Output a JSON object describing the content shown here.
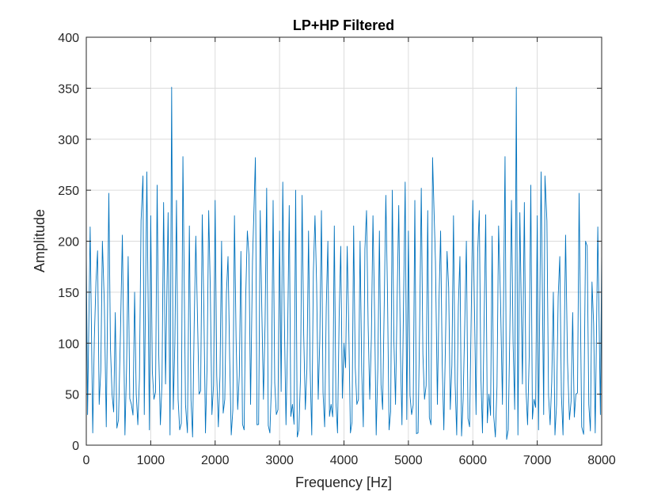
{
  "chart_data": {
    "type": "line",
    "title": "LP+HP Filtered",
    "xlabel": "Frequency [Hz]",
    "ylabel": "Amplitude",
    "xlim": [
      0,
      8000
    ],
    "ylim": [
      0,
      400
    ],
    "xticks": [
      0,
      1000,
      2000,
      3000,
      4000,
      5000,
      6000,
      7000,
      8000
    ],
    "yticks": [
      0,
      50,
      100,
      150,
      200,
      250,
      300,
      350,
      400
    ],
    "grid": true,
    "series_color": "#0072BD",
    "series": [
      {
        "style": "dense noise spectrum, mirror-symmetric about 4000 Hz",
        "x": [
          0,
          20,
          60,
          100,
          150,
          200,
          250,
          310,
          350,
          400,
          450,
          500,
          560,
          600,
          650,
          700,
          750,
          800,
          850,
          880,
          900,
          940,
          980,
          1000,
          1050,
          1100,
          1150,
          1200,
          1230,
          1270,
          1300,
          1325,
          1350,
          1400,
          1450,
          1500,
          1540,
          1600,
          1650,
          1700,
          1750,
          1800,
          1850,
          1900,
          1950,
          2000,
          2050,
          2100,
          2150,
          2200,
          2250,
          2300,
          2350,
          2400,
          2450,
          2500,
          2550,
          2580,
          2625,
          2650,
          2700,
          2750,
          2800,
          2850,
          2900,
          2950,
          3000,
          3050,
          3100,
          3150,
          3200,
          3250,
          3300,
          3350,
          3400,
          3450,
          3500,
          3550,
          3600,
          3650,
          3700,
          3750,
          3800,
          3850,
          3900,
          3950,
          4000
        ],
        "y": [
          190,
          30,
          214,
          12,
          160,
          40,
          200,
          18,
          247,
          50,
          130,
          25,
          206,
          10,
          185,
          40,
          150,
          20,
          220,
          264,
          30,
          268,
          15,
          225,
          45,
          255,
          20,
          238,
          60,
          228,
          10,
          351,
          35,
          240,
          15,
          283,
          40,
          215,
          8,
          205,
          50,
          226,
          12,
          230,
          30,
          240,
          18,
          200,
          45,
          185,
          10,
          225,
          35,
          190,
          15,
          210,
          40,
          180,
          282,
          20,
          230,
          45,
          252,
          12,
          240,
          30,
          210,
          258,
          20,
          235,
          40,
          250,
          15,
          245,
          35,
          210,
          10,
          225,
          45,
          230,
          18,
          200,
          40,
          215,
          12,
          195,
          100
        ]
      }
    ]
  }
}
